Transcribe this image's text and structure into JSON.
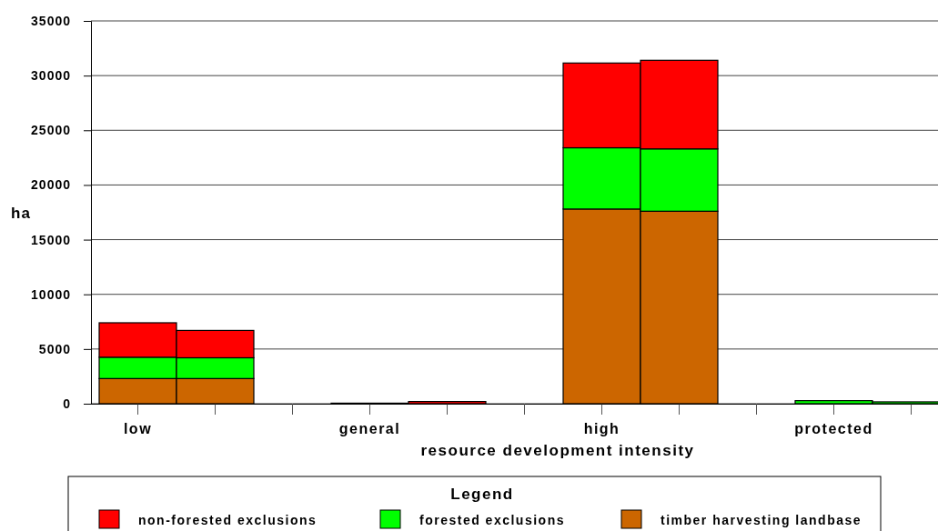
{
  "chart_data": {
    "type": "bar",
    "stacked": true,
    "xlabel": "resource development intensity",
    "ylabel": "ha",
    "legend_title": "Legend",
    "legend": "bottom",
    "grid": "y",
    "categories": [
      "low",
      null,
      null,
      "general",
      null,
      null,
      "high",
      null,
      null,
      "protected",
      null
    ],
    "series": [
      {
        "name": "timber harvesting landbase",
        "color": "#cc6600",
        "values": [
          2300,
          2300,
          null,
          0,
          0,
          null,
          17800,
          17600,
          null,
          null,
          null
        ]
      },
      {
        "name": "forested exclusions",
        "color": "#00ff00",
        "values": [
          1950,
          1900,
          null,
          0,
          0,
          null,
          5600,
          5700,
          null,
          280,
          170
        ]
      },
      {
        "name": "non-forested exclusions",
        "color": "#ff0000",
        "values": [
          3150,
          2500,
          null,
          50,
          200,
          null,
          7750,
          8100,
          null,
          0,
          null
        ]
      }
    ],
    "ylim": [
      0,
      35000
    ],
    "yticks": [
      0,
      5000,
      10000,
      15000,
      20000,
      25000,
      30000,
      35000
    ]
  }
}
